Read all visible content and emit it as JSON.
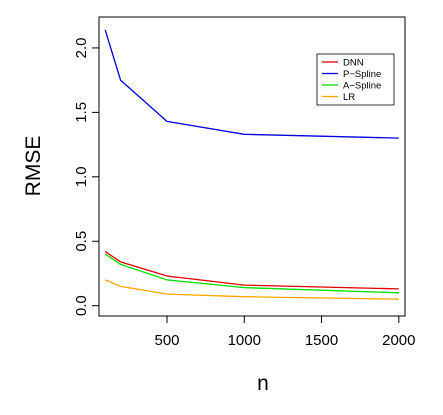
{
  "chart_data": {
    "type": "line",
    "xlabel": "n",
    "ylabel": "RMSE",
    "xlim": [
      60,
      2040
    ],
    "ylim": [
      -0.08,
      2.24
    ],
    "xticks": [
      500,
      1000,
      1500,
      2000
    ],
    "xtick_labels": [
      "500",
      "1000",
      "1500",
      "2000"
    ],
    "yticks": [
      0.0,
      0.5,
      1.0,
      1.5,
      2.0
    ],
    "ytick_labels": [
      "0.0",
      "0.5",
      "1.0",
      "1.5",
      "2.0"
    ],
    "x": [
      100,
      200,
      500,
      1000,
      2000
    ],
    "grid": false,
    "legend_position": "top-right",
    "series": [
      {
        "name": "DNN",
        "color": "#dd0000",
        "values": [
          0.42,
          0.34,
          0.23,
          0.16,
          0.13
        ]
      },
      {
        "name": "P−Spline",
        "color": "#0000dd",
        "values": [
          2.14,
          1.75,
          1.43,
          1.33,
          1.3
        ]
      },
      {
        "name": "A−Spline",
        "color": "#00dd00",
        "values": [
          0.4,
          0.32,
          0.2,
          0.14,
          0.1
        ]
      },
      {
        "name": "LR",
        "color": "#ffa500",
        "values": [
          0.2,
          0.15,
          0.09,
          0.07,
          0.05
        ]
      }
    ]
  }
}
